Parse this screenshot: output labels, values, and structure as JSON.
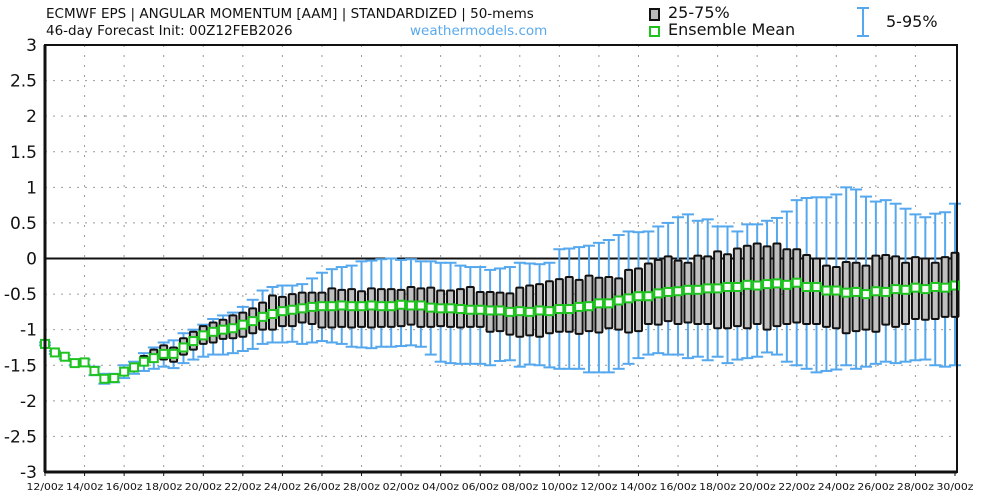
{
  "header": {
    "title": "ECMWF EPS | ANGULAR MOMENTUM [AAM] | STANDARDIZED | 50-mems",
    "subtitle": "46-day Forecast Init: 00Z12FEB2026",
    "site": "weathermodels.com"
  },
  "legend": {
    "box": "25-75%",
    "mean": "Ensemble Mean",
    "whisker": "5-95%"
  },
  "colors": {
    "box_fill": "#c0c0c0",
    "box_edge": "#111111",
    "whisker": "#55a8ee",
    "mean": "#1fc21f"
  },
  "chart_data": {
    "type": "box",
    "title": "ECMWF EPS | ANGULAR MOMENTUM [AAM] | STANDARDIZED | 50-mems",
    "ylim": [
      -3,
      3
    ],
    "yticks": [
      "3",
      "2.5",
      "2",
      "1.5",
      "1",
      "0.5",
      "0",
      "-0.5",
      "-1",
      "-1.5",
      "-2",
      "-2.5",
      "-3"
    ],
    "ytick_values": [
      3,
      2.5,
      2,
      1.5,
      1,
      0.5,
      0,
      -0.5,
      -1,
      -1.5,
      -2,
      -2.5,
      -3
    ],
    "xtick_labels": [
      "12/00z",
      "14/00z",
      "16/00z",
      "18/00z",
      "20/00z",
      "22/00z",
      "24/00z",
      "26/00z",
      "28/00z",
      "02/00z",
      "04/00z",
      "06/00z",
      "08/00z",
      "10/00z",
      "12/00z",
      "14/00z",
      "16/00z",
      "18/00z",
      "20/00z",
      "22/00z",
      "24/00z",
      "26/00z",
      "28/00z",
      "30/00z"
    ],
    "step_hours": 12,
    "grid": true,
    "mean": [
      -1.2,
      -1.32,
      -1.38,
      -1.47,
      -1.46,
      -1.58,
      -1.69,
      -1.68,
      -1.59,
      -1.53,
      -1.45,
      -1.4,
      -1.34,
      -1.34,
      -1.25,
      -1.16,
      -1.08,
      -1.03,
      -1.0,
      -0.98,
      -0.93,
      -0.88,
      -0.82,
      -0.78,
      -0.74,
      -0.72,
      -0.7,
      -0.68,
      -0.67,
      -0.67,
      -0.66,
      -0.67,
      -0.67,
      -0.66,
      -0.67,
      -0.67,
      -0.65,
      -0.66,
      -0.66,
      -0.69,
      -0.7,
      -0.7,
      -0.71,
      -0.72,
      -0.72,
      -0.73,
      -0.73,
      -0.75,
      -0.74,
      -0.75,
      -0.73,
      -0.74,
      -0.71,
      -0.71,
      -0.68,
      -0.67,
      -0.63,
      -0.63,
      -0.59,
      -0.56,
      -0.53,
      -0.53,
      -0.49,
      -0.47,
      -0.46,
      -0.44,
      -0.44,
      -0.42,
      -0.42,
      -0.4,
      -0.4,
      -0.37,
      -0.38,
      -0.36,
      -0.35,
      -0.37,
      -0.34,
      -0.4,
      -0.4,
      -0.45,
      -0.45,
      -0.48,
      -0.47,
      -0.5,
      -0.46,
      -0.47,
      -0.43,
      -0.44,
      -0.41,
      -0.43,
      -0.4,
      -0.41,
      -0.38
    ],
    "q75": [
      -1.18,
      -1.3,
      -1.36,
      -1.45,
      -1.44,
      -1.56,
      -1.67,
      -1.66,
      -1.57,
      -1.51,
      -1.37,
      -1.28,
      -1.22,
      -1.25,
      -1.12,
      -1.03,
      -0.95,
      -0.9,
      -0.86,
      -0.8,
      -0.76,
      -0.7,
      -0.62,
      -0.52,
      -0.54,
      -0.5,
      -0.48,
      -0.48,
      -0.48,
      -0.42,
      -0.44,
      -0.43,
      -0.46,
      -0.42,
      -0.43,
      -0.43,
      -0.44,
      -0.4,
      -0.42,
      -0.41,
      -0.45,
      -0.45,
      -0.43,
      -0.4,
      -0.47,
      -0.47,
      -0.48,
      -0.49,
      -0.41,
      -0.38,
      -0.36,
      -0.32,
      -0.29,
      -0.26,
      -0.3,
      -0.24,
      -0.27,
      -0.26,
      -0.28,
      -0.16,
      -0.14,
      -0.07,
      -0.02,
      0.03,
      -0.03,
      -0.06,
      0.04,
      0.03,
      0.1,
      0.06,
      0.14,
      0.18,
      0.21,
      0.17,
      0.21,
      0.13,
      0.13,
      0.05,
      0.0,
      -0.1,
      -0.12,
      -0.05,
      -0.06,
      -0.1,
      0.04,
      0.05,
      0.03,
      -0.06,
      0.02,
      0.0,
      -0.06,
      0.02,
      0.08
    ],
    "q25": [
      -1.22,
      -1.34,
      -1.4,
      -1.49,
      -1.48,
      -1.6,
      -1.71,
      -1.7,
      -1.61,
      -1.55,
      -1.5,
      -1.45,
      -1.42,
      -1.45,
      -1.35,
      -1.28,
      -1.2,
      -1.18,
      -1.13,
      -1.12,
      -1.1,
      -1.05,
      -1.0,
      -1.0,
      -0.95,
      -0.95,
      -0.9,
      -0.92,
      -0.97,
      -0.97,
      -0.96,
      -0.97,
      -0.96,
      -0.97,
      -0.96,
      -0.96,
      -0.95,
      -0.93,
      -0.96,
      -0.96,
      -0.95,
      -0.96,
      -0.97,
      -0.96,
      -0.96,
      -1.03,
      -1.02,
      -1.07,
      -1.1,
      -1.08,
      -1.1,
      -1.05,
      -1.03,
      -1.03,
      -1.06,
      -1.02,
      -1.04,
      -0.98,
      -1.0,
      -1.04,
      -1.02,
      -0.92,
      -0.93,
      -0.88,
      -0.92,
      -0.9,
      -0.92,
      -0.92,
      -0.98,
      -0.98,
      -0.95,
      -0.98,
      -0.92,
      -1.0,
      -0.95,
      -0.92,
      -0.9,
      -0.92,
      -0.92,
      -0.96,
      -0.98,
      -1.05,
      -1.02,
      -1.0,
      -1.03,
      -0.93,
      -0.96,
      -0.92,
      -0.85,
      -0.86,
      -0.85,
      -0.82,
      -0.82
    ],
    "p95": [
      -1.18,
      -1.3,
      -1.36,
      -1.44,
      -1.42,
      -1.52,
      -1.62,
      -1.62,
      -1.5,
      -1.45,
      -1.33,
      -1.25,
      -1.18,
      -1.15,
      -1.05,
      -1.0,
      -0.93,
      -0.85,
      -0.8,
      -0.76,
      -0.68,
      -0.58,
      -0.45,
      -0.4,
      -0.38,
      -0.38,
      -0.36,
      -0.28,
      -0.2,
      -0.15,
      -0.12,
      -0.1,
      -0.04,
      -0.03,
      -0.01,
      0.0,
      -0.02,
      -0.01,
      -0.04,
      -0.04,
      -0.06,
      -0.06,
      -0.1,
      -0.12,
      -0.12,
      -0.16,
      -0.14,
      -0.12,
      -0.06,
      -0.07,
      -0.08,
      -0.06,
      0.13,
      0.14,
      0.16,
      0.18,
      0.22,
      0.26,
      0.33,
      0.38,
      0.37,
      0.38,
      0.45,
      0.5,
      0.58,
      0.62,
      0.53,
      0.55,
      0.45,
      0.45,
      0.38,
      0.48,
      0.48,
      0.53,
      0.57,
      0.66,
      0.82,
      0.85,
      0.86,
      0.86,
      0.9,
      1.0,
      0.97,
      0.87,
      0.8,
      0.82,
      0.77,
      0.7,
      0.62,
      0.58,
      0.63,
      0.65,
      0.77
    ],
    "p5": [
      -1.22,
      -1.34,
      -1.41,
      -1.5,
      -1.5,
      -1.64,
      -1.76,
      -1.74,
      -1.68,
      -1.62,
      -1.58,
      -1.55,
      -1.52,
      -1.54,
      -1.47,
      -1.42,
      -1.38,
      -1.35,
      -1.35,
      -1.33,
      -1.3,
      -1.27,
      -1.2,
      -1.18,
      -1.18,
      -1.17,
      -1.2,
      -1.18,
      -1.16,
      -1.18,
      -1.2,
      -1.24,
      -1.25,
      -1.26,
      -1.24,
      -1.24,
      -1.23,
      -1.22,
      -1.24,
      -1.35,
      -1.45,
      -1.47,
      -1.48,
      -1.48,
      -1.48,
      -1.5,
      -1.44,
      -1.43,
      -1.52,
      -1.49,
      -1.5,
      -1.53,
      -1.55,
      -1.55,
      -1.55,
      -1.6,
      -1.6,
      -1.6,
      -1.55,
      -1.48,
      -1.4,
      -1.35,
      -1.33,
      -1.35,
      -1.35,
      -1.4,
      -1.38,
      -1.43,
      -1.38,
      -1.47,
      -1.42,
      -1.4,
      -1.38,
      -1.32,
      -1.35,
      -1.45,
      -1.5,
      -1.55,
      -1.6,
      -1.58,
      -1.56,
      -1.5,
      -1.55,
      -1.52,
      -1.48,
      -1.45,
      -1.47,
      -1.45,
      -1.43,
      -1.42,
      -1.5,
      -1.52,
      -1.5
    ]
  }
}
